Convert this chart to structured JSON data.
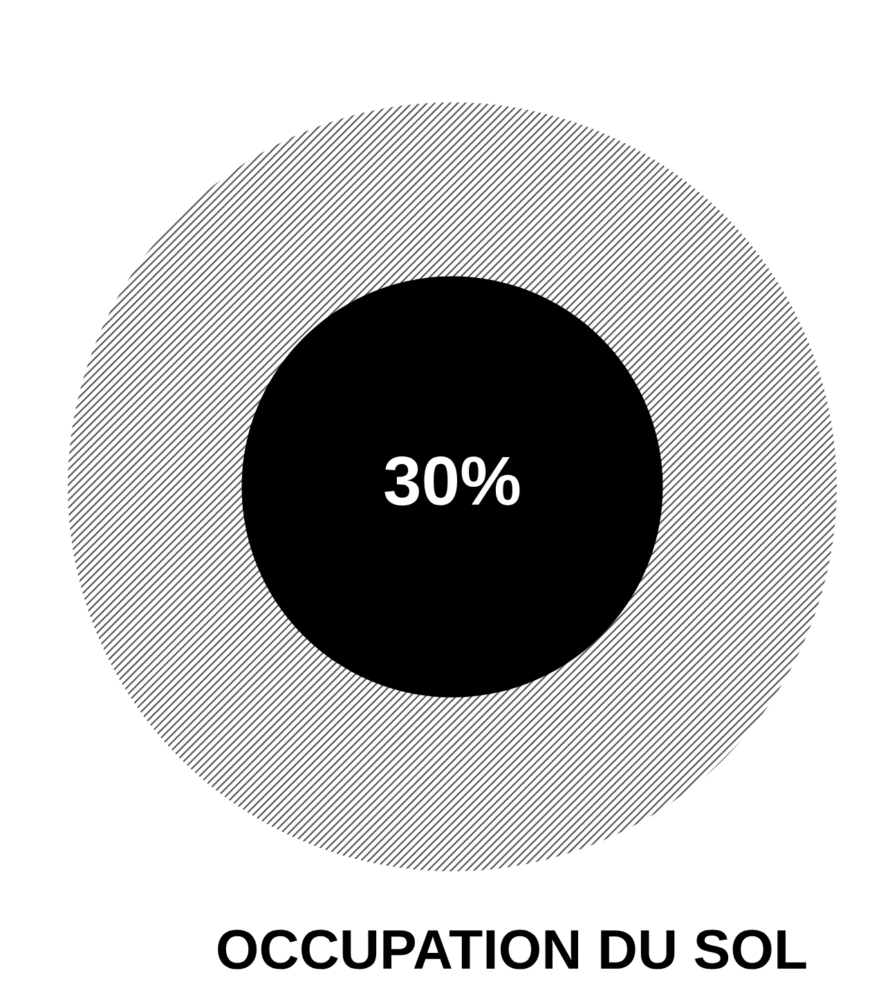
{
  "chart_data": {
    "type": "other",
    "title": "OCCUPATION DU SOL",
    "values": [
      30
    ],
    "value_labels": [
      "30%"
    ],
    "colors": [
      "#000000"
    ]
  }
}
